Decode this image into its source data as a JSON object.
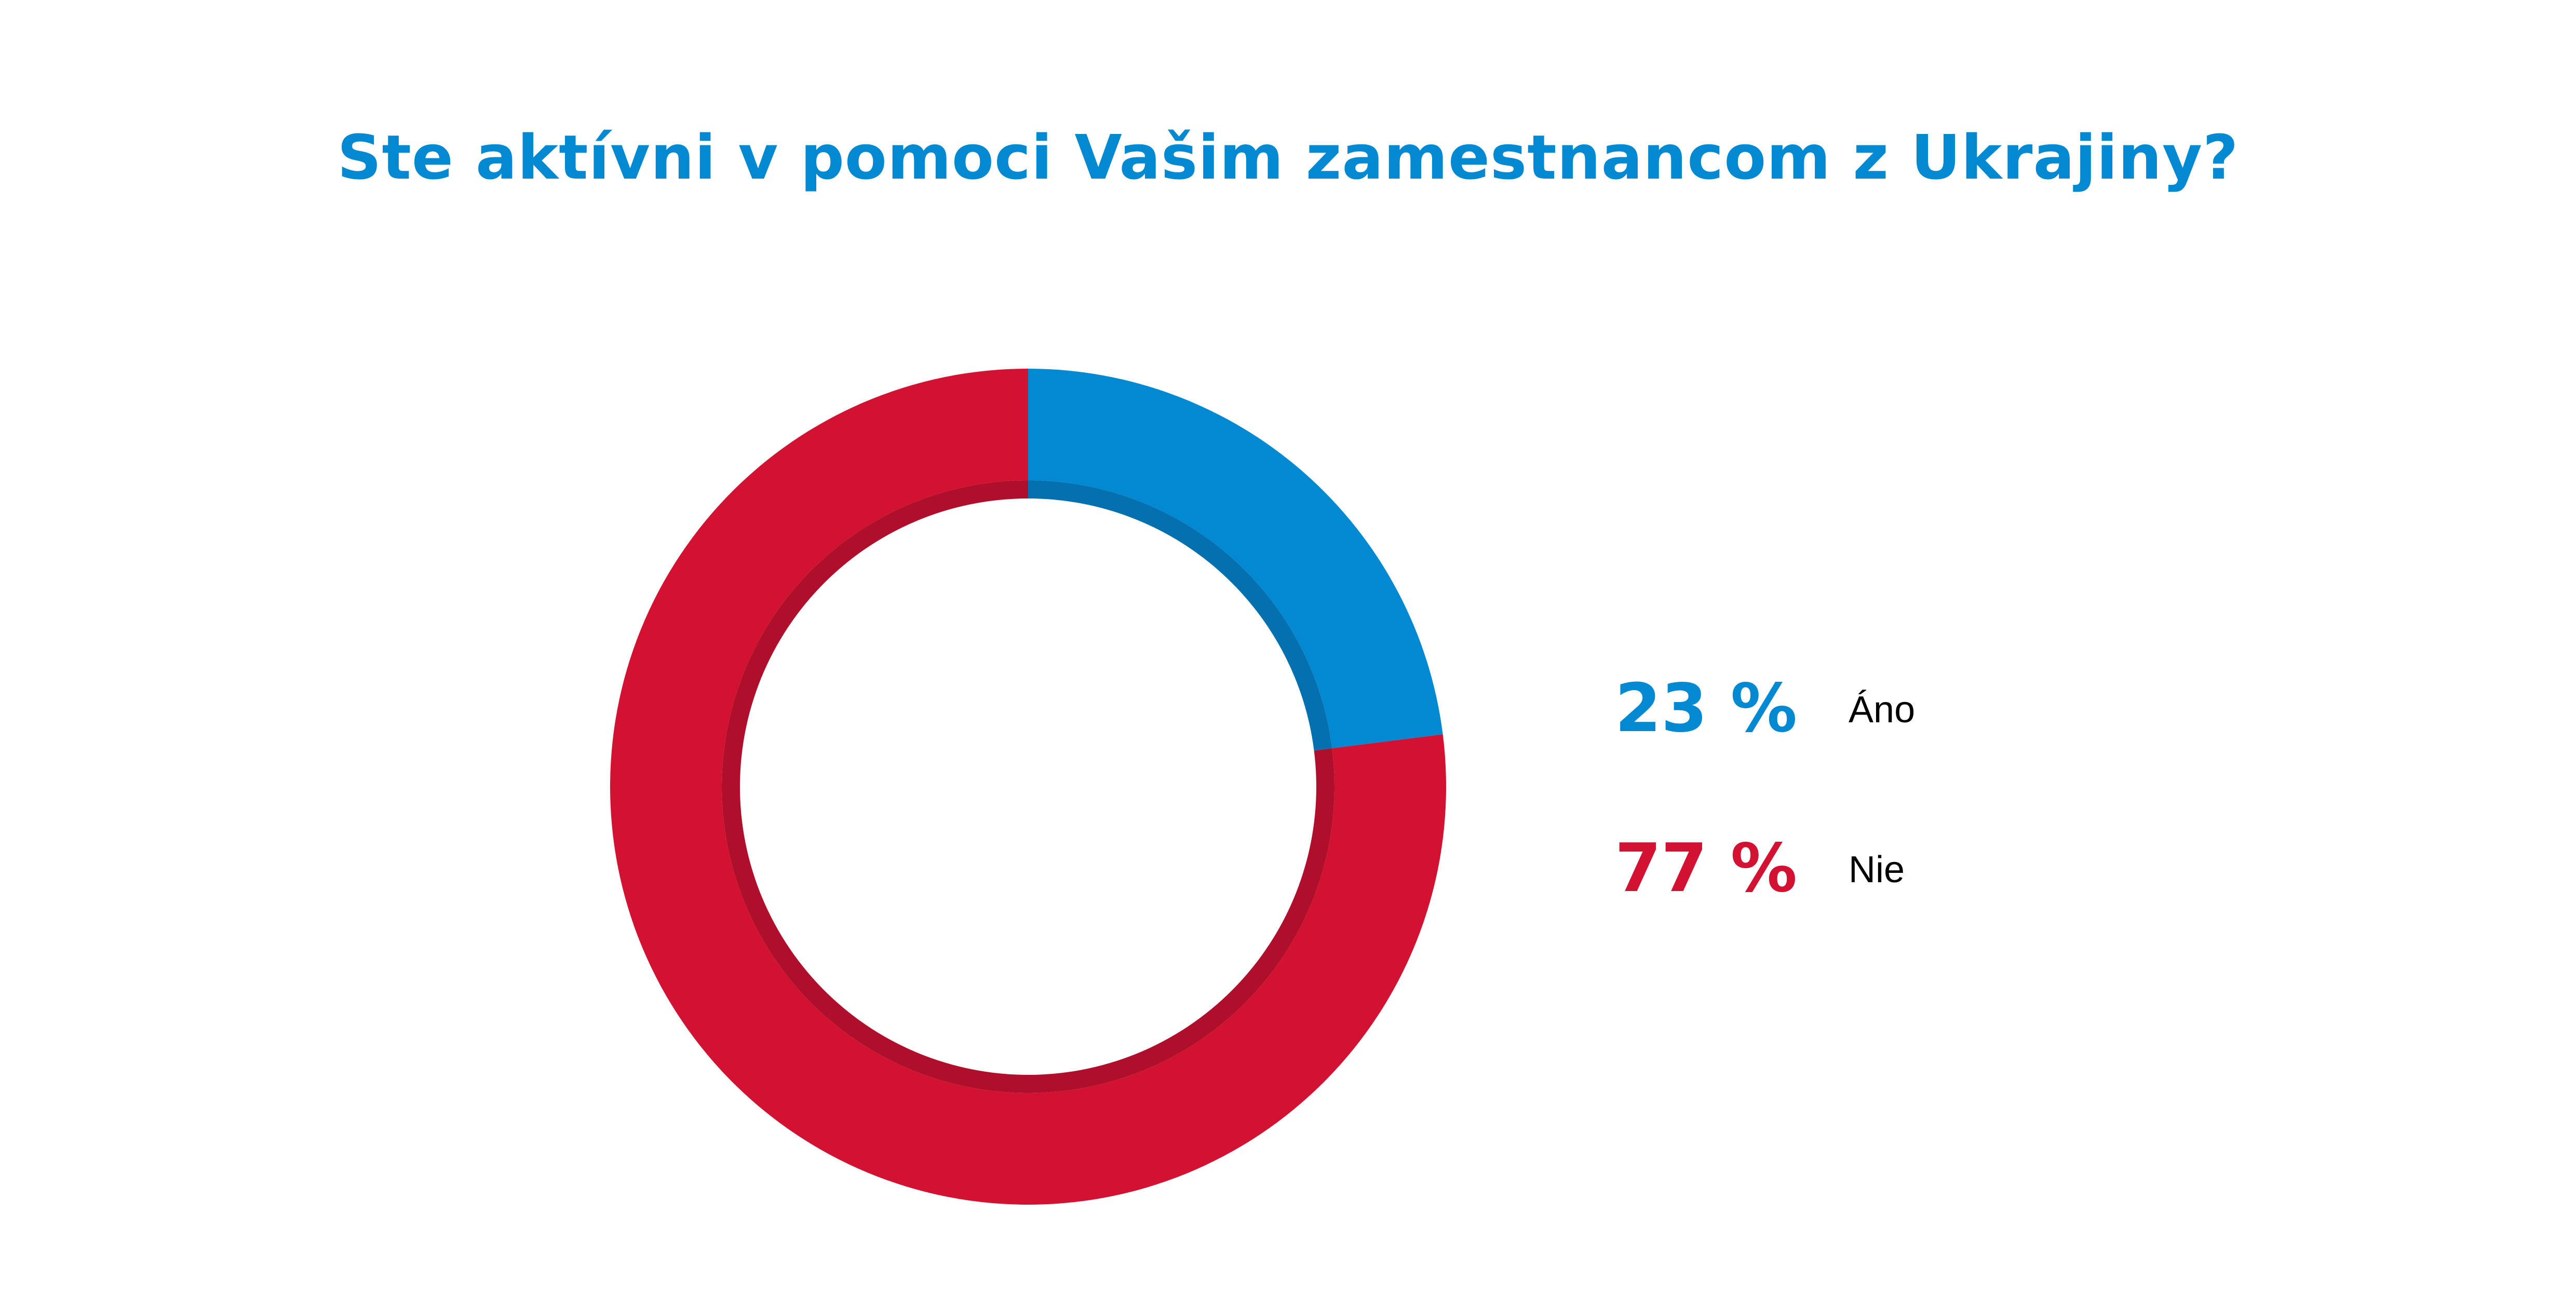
{
  "title": "Ste aktívni v pomoci Vašim zamestnancom z Ukrajiny?",
  "colors": {
    "title": "#0289d1",
    "ano": "#0289d1",
    "ano_shade": "#0470b0",
    "nie": "#d31130",
    "nie_shade": "#b00f2c"
  },
  "chart_data": {
    "type": "pie",
    "variant": "donut",
    "title": "Ste aktívni v pomoci Vašim zamestnancom z Ukrajiny?",
    "slices": [
      {
        "label": "Áno",
        "value": 23,
        "display": "23 %",
        "color": "#0289d1"
      },
      {
        "label": "Nie",
        "value": 77,
        "display": "77 %",
        "color": "#d31130"
      }
    ],
    "legend_position": "right"
  }
}
